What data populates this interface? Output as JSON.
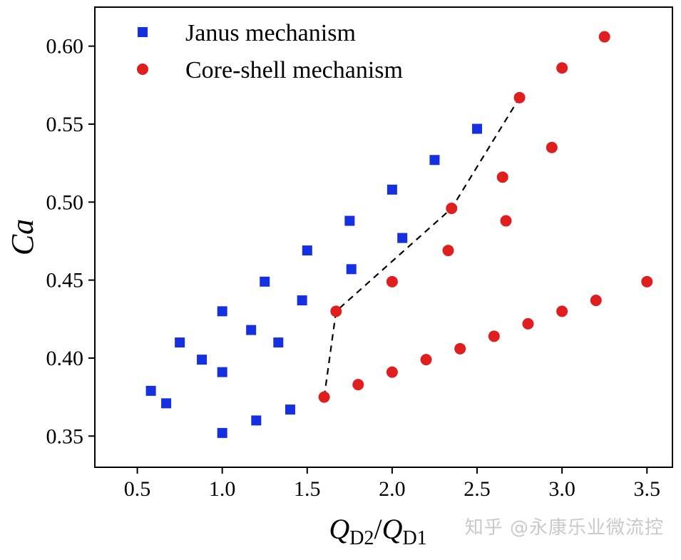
{
  "colors": {
    "janus": "#1530e0",
    "core_shell": "#e01e1e",
    "axis": "#000000",
    "boundary": "#000000"
  },
  "watermark_text": "知乎 @永康乐业微流控",
  "chart_data": {
    "type": "scatter",
    "title": "",
    "xlabel": {
      "main": "Q",
      "sub1": "D2",
      "sep": "/",
      "sub2": "D1"
    },
    "ylabel": "Ca",
    "xlim": [
      0.25,
      3.65
    ],
    "ylim": [
      0.33,
      0.625
    ],
    "xticks": [
      "0.5",
      "1.0",
      "1.5",
      "2.0",
      "2.5",
      "3.0",
      "3.5"
    ],
    "yticks": [
      "0.35",
      "0.40",
      "0.45",
      "0.50",
      "0.55",
      "0.60"
    ],
    "grid": false,
    "legend_position": "top-left",
    "series": [
      {
        "name": "Janus mechanism",
        "marker": "square",
        "color": "#1530e0",
        "points": [
          [
            0.58,
            0.379
          ],
          [
            0.67,
            0.371
          ],
          [
            0.75,
            0.41
          ],
          [
            0.88,
            0.399
          ],
          [
            1.0,
            0.43
          ],
          [
            1.0,
            0.391
          ],
          [
            1.0,
            0.352
          ],
          [
            1.17,
            0.418
          ],
          [
            1.2,
            0.36
          ],
          [
            1.25,
            0.449
          ],
          [
            1.33,
            0.41
          ],
          [
            1.4,
            0.367
          ],
          [
            1.47,
            0.437
          ],
          [
            1.5,
            0.469
          ],
          [
            1.75,
            0.488
          ],
          [
            1.76,
            0.457
          ],
          [
            2.0,
            0.508
          ],
          [
            2.06,
            0.477
          ],
          [
            2.25,
            0.527
          ],
          [
            2.5,
            0.547
          ]
        ]
      },
      {
        "name": "Core-shell mechanism",
        "marker": "circle",
        "color": "#e01e1e",
        "points": [
          [
            1.6,
            0.375
          ],
          [
            1.67,
            0.43
          ],
          [
            1.8,
            0.383
          ],
          [
            2.0,
            0.391
          ],
          [
            2.0,
            0.449
          ],
          [
            2.2,
            0.399
          ],
          [
            2.33,
            0.469
          ],
          [
            2.35,
            0.496
          ],
          [
            2.4,
            0.406
          ],
          [
            2.6,
            0.414
          ],
          [
            2.65,
            0.516
          ],
          [
            2.67,
            0.488
          ],
          [
            2.75,
            0.567
          ],
          [
            2.8,
            0.422
          ],
          [
            2.94,
            0.535
          ],
          [
            3.0,
            0.43
          ],
          [
            3.0,
            0.586
          ],
          [
            3.2,
            0.437
          ],
          [
            3.25,
            0.606
          ],
          [
            3.5,
            0.449
          ]
        ]
      }
    ],
    "boundary_line": {
      "style": "dashed",
      "points": [
        [
          1.6,
          0.375
        ],
        [
          1.67,
          0.43
        ],
        [
          2.35,
          0.496
        ],
        [
          2.75,
          0.567
        ]
      ]
    }
  }
}
